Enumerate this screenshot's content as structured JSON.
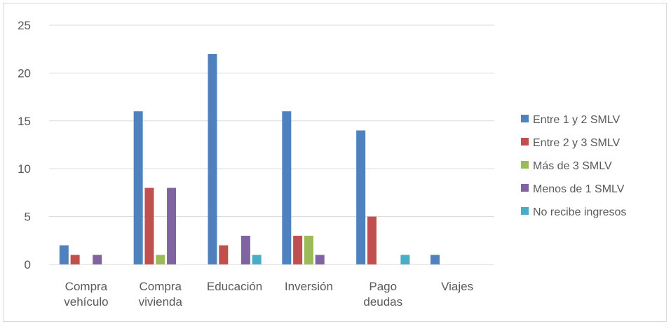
{
  "chart_data": {
    "type": "bar",
    "categories": [
      [
        "Compra",
        "vehículo"
      ],
      [
        "Compra",
        "vivienda"
      ],
      [
        "Educación"
      ],
      [
        "Inversión"
      ],
      [
        "Pago",
        "deudas"
      ],
      [
        "Viajes"
      ]
    ],
    "series": [
      {
        "name": "Entre 1 y 2 SMLV",
        "color": "#4f81bd",
        "values": [
          2,
          16,
          22,
          16,
          14,
          1
        ]
      },
      {
        "name": "Entre 2 y 3 SMLV",
        "color": "#c0504d",
        "values": [
          1,
          8,
          2,
          3,
          5,
          0
        ]
      },
      {
        "name": "Más de 3 SMLV",
        "color": "#9bbb59",
        "values": [
          0,
          1,
          0,
          3,
          0,
          0
        ]
      },
      {
        "name": "Menos de 1 SMLV",
        "color": "#8064a2",
        "values": [
          1,
          8,
          3,
          1,
          0,
          0
        ]
      },
      {
        "name": "No recibe ingresos",
        "color": "#4bacc6",
        "values": [
          0,
          0,
          1,
          0,
          1,
          0
        ]
      }
    ],
    "ylim": [
      0,
      25
    ],
    "yticks": [
      "0",
      "5",
      "10",
      "15",
      "20",
      "25"
    ],
    "grid": true,
    "legend_position": "right",
    "gridline_color": "#d9d9d9"
  }
}
